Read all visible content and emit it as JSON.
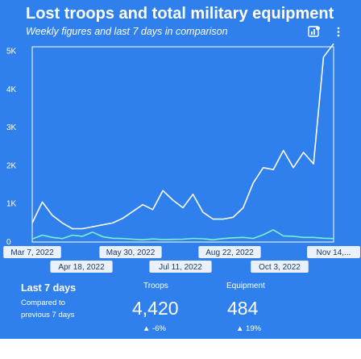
{
  "header": {
    "title": "Lost troops and total military equipment",
    "subtitle": "Weekly figures and last 7 days in comparison",
    "chart_icon": "chart-settings-icon",
    "menu_icon": "vertical-dots-icon"
  },
  "colors": {
    "background": "#2f80ed",
    "troops_line": "#ffffff",
    "equipment_line": "#7cf0c8",
    "date_badge": "#eaf1fd"
  },
  "chart_data": {
    "type": "line",
    "title": "Lost troops and total military equipment",
    "subtitle": "Weekly figures and last 7 days in comparison",
    "x_ticks_top": [
      "Mar 7, 2022",
      "May 30, 2022",
      "Aug 22, 2022",
      "Nov 14,..."
    ],
    "x_ticks_bottom": [
      "Apr 18, 2022",
      "Jul 11, 2022",
      "Oct 3, 2022"
    ],
    "y_ticks": [
      "0",
      "1K",
      "2K",
      "3K",
      "4K",
      "5K"
    ],
    "ylim": [
      0,
      5500
    ],
    "grid": false,
    "series": [
      {
        "name": "Troops",
        "values": [
          500,
          1050,
          700,
          500,
          350,
          350,
          400,
          450,
          500,
          620,
          800,
          980,
          850,
          1350,
          1100,
          900,
          1250,
          780,
          600,
          600,
          650,
          900,
          1550,
          1950,
          1900,
          2400,
          1950,
          2350,
          2050,
          4850,
          5200
        ]
      },
      {
        "name": "Equipment",
        "values": [
          80,
          180,
          120,
          90,
          180,
          150,
          260,
          140,
          100,
          90,
          75,
          60,
          80,
          65,
          70,
          75,
          95,
          85,
          60,
          90,
          110,
          120,
          95,
          190,
          320,
          160,
          150,
          120,
          120,
          100,
          90
        ]
      }
    ]
  },
  "footer": {
    "title": "Last 7 days",
    "compare_line1": "Compared to",
    "compare_line2": "previous 7 days",
    "metrics": [
      {
        "label": "Troops",
        "value": "4,420",
        "delta": "▲ -6%"
      },
      {
        "label": "Equipment",
        "value": "484",
        "delta": "▲ 19%"
      }
    ]
  }
}
